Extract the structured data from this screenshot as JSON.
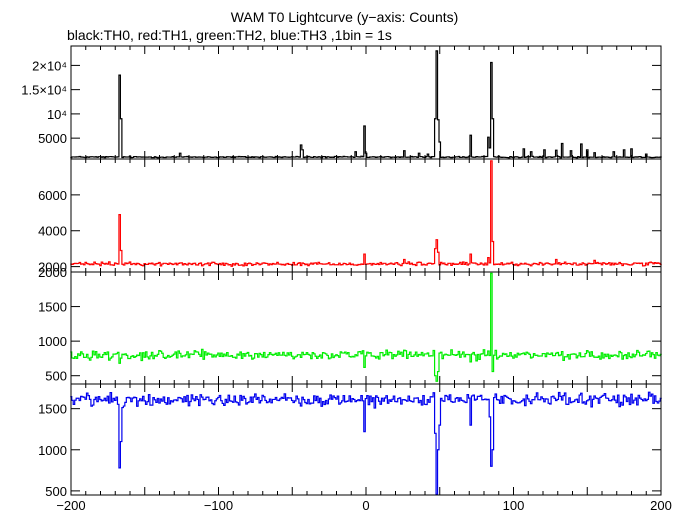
{
  "title": "WAM T0 Lightcurve (y−axis: Counts)",
  "subtitle": "black:TH0, red:TH1, green:TH2, blue:TH3 ,1bin = 1s",
  "chart_data": {
    "type": "line",
    "x_axis": {
      "range": [
        -200,
        200
      ],
      "major_ticks": [
        -200,
        -100,
        0,
        100,
        200
      ],
      "tick_labels": [
        "−200",
        "−100",
        "0",
        "100",
        "200"
      ]
    },
    "panels": [
      {
        "name": "TH0",
        "color": "#000000",
        "ylim": [
          700,
          24000
        ],
        "y_ticks": [
          5000,
          10000,
          15000,
          20000
        ],
        "y_tick_labels": [
          "5000",
          "10⁴",
          "1.5×10⁴",
          "2×10⁴"
        ],
        "baseline": 1100,
        "noise": 100,
        "peaks": [
          {
            "x": -167,
            "y": 18000
          },
          {
            "x": -166,
            "y": 9000
          },
          {
            "x": -126,
            "y": 1900
          },
          {
            "x": -44,
            "y": 3600
          },
          {
            "x": -43,
            "y": 2600
          },
          {
            "x": -7,
            "y": 2200
          },
          {
            "x": -1,
            "y": 7500
          },
          {
            "x": 0,
            "y": 1900
          },
          {
            "x": 26,
            "y": 2400
          },
          {
            "x": 36,
            "y": 1900
          },
          {
            "x": 42,
            "y": 1700
          },
          {
            "x": 47,
            "y": 9000
          },
          {
            "x": 48,
            "y": 23000
          },
          {
            "x": 49,
            "y": 8800
          },
          {
            "x": 50,
            "y": 4200
          },
          {
            "x": 71,
            "y": 5600
          },
          {
            "x": 83,
            "y": 5200
          },
          {
            "x": 84,
            "y": 3000
          },
          {
            "x": 85,
            "y": 20600
          },
          {
            "x": 86,
            "y": 9000
          },
          {
            "x": 107,
            "y": 2800
          },
          {
            "x": 112,
            "y": 2200
          },
          {
            "x": 121,
            "y": 2600
          },
          {
            "x": 129,
            "y": 2500
          },
          {
            "x": 133,
            "y": 3900
          },
          {
            "x": 139,
            "y": 2400
          },
          {
            "x": 146,
            "y": 3800
          },
          {
            "x": 150,
            "y": 2600
          },
          {
            "x": 155,
            "y": 2000
          },
          {
            "x": 168,
            "y": 2200
          },
          {
            "x": 175,
            "y": 2600
          },
          {
            "x": 180,
            "y": 2800
          },
          {
            "x": 190,
            "y": 1700
          }
        ]
      },
      {
        "name": "TH1",
        "color": "#ff0000",
        "ylim": [
          1700,
          8000
        ],
        "y_ticks": [
          2000,
          4000,
          6000
        ],
        "y_tick_labels": [
          "2000",
          "4000",
          "6000"
        ],
        "baseline": 2150,
        "noise": 70,
        "peaks": [
          {
            "x": -167,
            "y": 4900
          },
          {
            "x": -166,
            "y": 2900
          },
          {
            "x": -1,
            "y": 2700
          },
          {
            "x": 26,
            "y": 2400
          },
          {
            "x": 47,
            "y": 3000
          },
          {
            "x": 48,
            "y": 3500
          },
          {
            "x": 49,
            "y": 2800
          },
          {
            "x": 71,
            "y": 2700
          },
          {
            "x": 83,
            "y": 2500
          },
          {
            "x": 85,
            "y": 7900
          },
          {
            "x": 86,
            "y": 3400
          },
          {
            "x": 129,
            "y": 2400
          },
          {
            "x": 155,
            "y": 2350
          }
        ]
      },
      {
        "name": "TH2",
        "color": "#00ee00",
        "ylim": [
          380,
          2000
        ],
        "y_ticks": [
          500,
          1000,
          1500,
          2000
        ],
        "y_tick_labels": [
          "500",
          "1000",
          "1500",
          "2000"
        ],
        "baseline": 800,
        "noise": 45,
        "peaks": [
          {
            "x": -167,
            "y": 680
          },
          {
            "x": -1,
            "y": 620
          },
          {
            "x": 47,
            "y": 500
          },
          {
            "x": 48,
            "y": 420
          },
          {
            "x": 49,
            "y": 560
          },
          {
            "x": 71,
            "y": 700
          },
          {
            "x": 85,
            "y": 1980
          },
          {
            "x": 86,
            "y": 560
          }
        ]
      },
      {
        "name": "TH3",
        "color": "#0000ee",
        "ylim": [
          450,
          1800
        ],
        "y_ticks": [
          500,
          1000,
          1500
        ],
        "y_tick_labels": [
          "500",
          "1000",
          "1500"
        ],
        "baseline": 1610,
        "noise": 55,
        "peaks": [
          {
            "x": -167,
            "y": 780
          },
          {
            "x": -166,
            "y": 1100
          },
          {
            "x": -1,
            "y": 1220
          },
          {
            "x": 47,
            "y": 1200
          },
          {
            "x": 48,
            "y": 460
          },
          {
            "x": 49,
            "y": 1000
          },
          {
            "x": 50,
            "y": 1300
          },
          {
            "x": 71,
            "y": 1300
          },
          {
            "x": 84,
            "y": 1400
          },
          {
            "x": 85,
            "y": 800
          },
          {
            "x": 86,
            "y": 1000
          }
        ]
      }
    ]
  }
}
